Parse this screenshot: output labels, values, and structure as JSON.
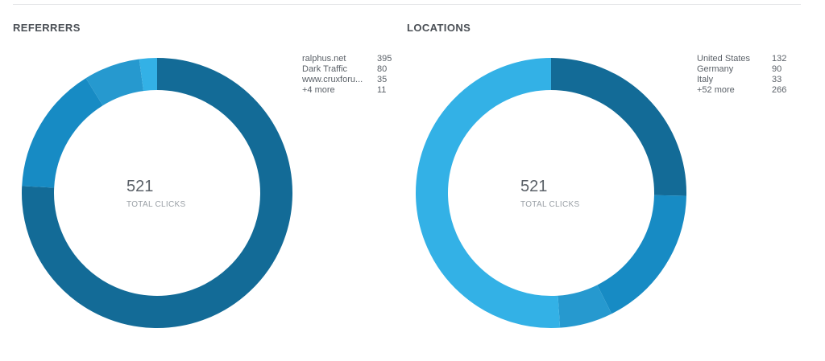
{
  "chart_data": [
    {
      "type": "pie",
      "title": "REFERRERS",
      "total": "521",
      "total_caption": "TOTAL CLICKS",
      "categories": [
        "ralphus.net",
        "Dark Traffic",
        "www.cruxforu...",
        "+4 more"
      ],
      "values": [
        395,
        80,
        35,
        11
      ],
      "colors": [
        "#136b97",
        "#178bc4",
        "#2699cf",
        "#33b1e6"
      ]
    },
    {
      "type": "pie",
      "title": "LOCATIONS",
      "total": "521",
      "total_caption": "TOTAL CLICKS",
      "categories": [
        "United States",
        "Germany",
        "Italy",
        "+52 more"
      ],
      "values": [
        132,
        90,
        33,
        266
      ],
      "colors": [
        "#136b97",
        "#178bc4",
        "#2699cf",
        "#33b1e6"
      ]
    }
  ]
}
